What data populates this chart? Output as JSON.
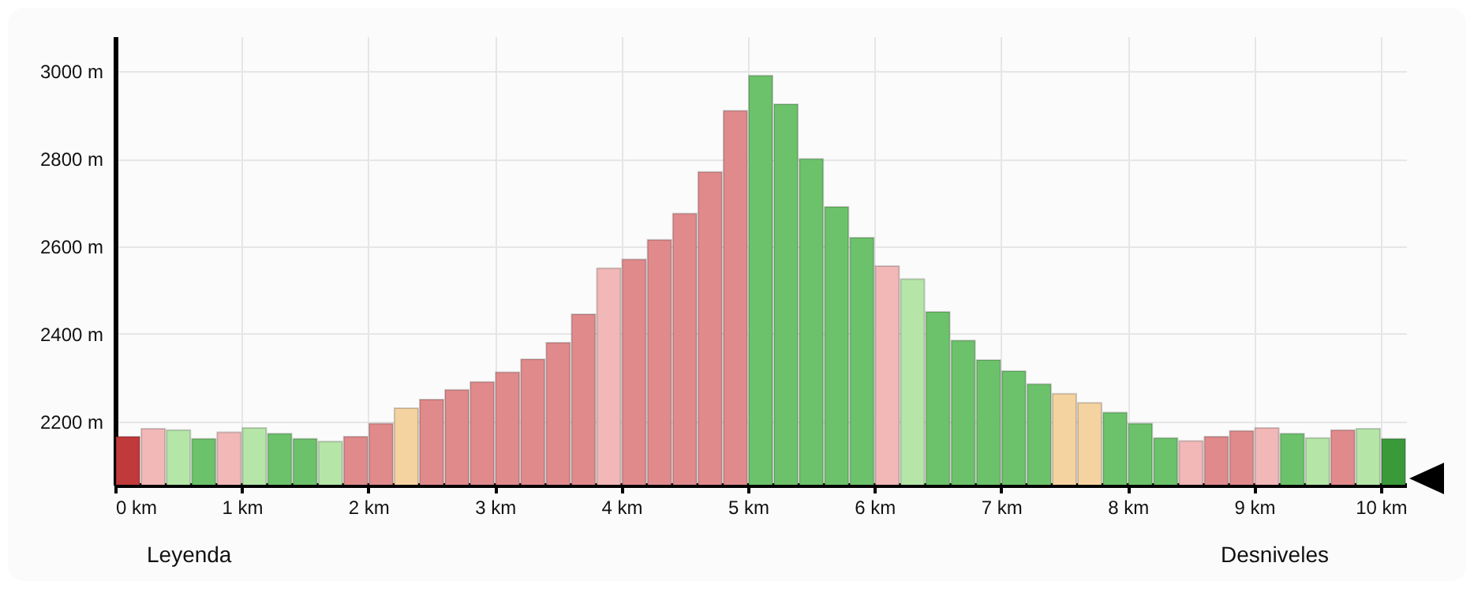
{
  "chart_data": {
    "type": "bar",
    "x": [
      0.1,
      0.3,
      0.5,
      0.7,
      0.9,
      1.1,
      1.3,
      1.5,
      1.7,
      1.9,
      2.1,
      2.3,
      2.5,
      2.7,
      2.9,
      3.1,
      3.3,
      3.5,
      3.7,
      3.9,
      4.1,
      4.3,
      4.5,
      4.7,
      4.9,
      5.1,
      5.3,
      5.5,
      5.7,
      5.9,
      6.1,
      6.3,
      6.5,
      6.7,
      6.9,
      7.1,
      7.3,
      7.5,
      7.7,
      7.9,
      8.1,
      8.3,
      8.5,
      8.7,
      8.9,
      9.1,
      9.3,
      9.5,
      9.7,
      9.9,
      10.1
    ],
    "values": [
      2165,
      2183,
      2180,
      2160,
      2175,
      2185,
      2172,
      2160,
      2154,
      2165,
      2195,
      2230,
      2250,
      2272,
      2290,
      2312,
      2342,
      2380,
      2445,
      2550,
      2570,
      2615,
      2675,
      2770,
      2910,
      2990,
      2925,
      2800,
      2690,
      2620,
      2555,
      2525,
      2450,
      2385,
      2340,
      2315,
      2285,
      2263,
      2242,
      2220,
      2195,
      2162,
      2155,
      2165,
      2178,
      2185,
      2172,
      2162,
      2180,
      2183,
      2160
    ],
    "colors": [
      "#c0393b",
      "#f2b8b8",
      "#b5e6a8",
      "#6cc26a",
      "#f2b8b8",
      "#b5e6a8",
      "#6cc26a",
      "#6cc26a",
      "#b5e6a8",
      "#e08a8c",
      "#e08a8c",
      "#f5d3a0",
      "#e08a8c",
      "#e08a8c",
      "#e08a8c",
      "#e08a8c",
      "#e08a8c",
      "#e08a8c",
      "#e08a8c",
      "#f2b8b8",
      "#e08a8c",
      "#e08a8c",
      "#e08a8c",
      "#e08a8c",
      "#e08a8c",
      "#6cc26a",
      "#6cc26a",
      "#6cc26a",
      "#6cc26a",
      "#6cc26a",
      "#f2b8b8",
      "#b5e6a8",
      "#6cc26a",
      "#6cc26a",
      "#6cc26a",
      "#6cc26a",
      "#6cc26a",
      "#f5d3a0",
      "#f5d3a0",
      "#6cc26a",
      "#6cc26a",
      "#6cc26a",
      "#f2b8b8",
      "#e08a8c",
      "#e08a8c",
      "#f2b8b8",
      "#6cc26a",
      "#b5e6a8",
      "#e08a8c",
      "#b5e6a8",
      "#3a9a3a"
    ],
    "xlim": [
      0,
      10.2
    ],
    "xticks": [
      {
        "value": 0,
        "label": "0 km"
      },
      {
        "value": 1,
        "label": "1 km"
      },
      {
        "value": 2,
        "label": "2 km"
      },
      {
        "value": 3,
        "label": "3 km"
      },
      {
        "value": 4,
        "label": "4 km"
      },
      {
        "value": 5,
        "label": "5 km"
      },
      {
        "value": 6,
        "label": "6 km"
      },
      {
        "value": 7,
        "label": "7 km"
      },
      {
        "value": 8,
        "label": "8 km"
      },
      {
        "value": 9,
        "label": "9 km"
      },
      {
        "value": 10,
        "label": "10 km"
      }
    ],
    "ylim": [
      2055,
      3080
    ],
    "yticks": [
      {
        "value": 2200,
        "label": "2200 m"
      },
      {
        "value": 2400,
        "label": "2400 m"
      },
      {
        "value": 2600,
        "label": "2600 m"
      },
      {
        "value": 2800,
        "label": "2800 m"
      },
      {
        "value": 3000,
        "label": "3000 m"
      }
    ],
    "grid": true,
    "annotations": [
      "Leyenda",
      "Desniveles"
    ]
  }
}
